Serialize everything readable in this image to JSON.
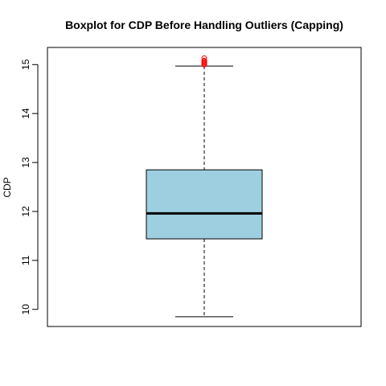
{
  "chart_data": {
    "type": "boxplot",
    "title": "Boxplot for CDP Before Handling Outliers (Capping)",
    "xlabel": "",
    "ylabel": "CDP",
    "ylim": [
      9.65,
      15.35
    ],
    "yticks": [
      10,
      11,
      12,
      13,
      14,
      15
    ],
    "ytick_labels": [
      "10",
      "11",
      "12",
      "13",
      "14",
      "15"
    ],
    "grid": false,
    "box": {
      "whisker_low": 9.85,
      "q1": 11.44,
      "median": 11.96,
      "q3": 12.85,
      "whisker_high": 14.97,
      "outliers": [
        15.0,
        15.02,
        15.04,
        15.06,
        15.08,
        15.13
      ],
      "fill_color": "#9ecfe0",
      "outlier_color": "#ff0000"
    }
  }
}
